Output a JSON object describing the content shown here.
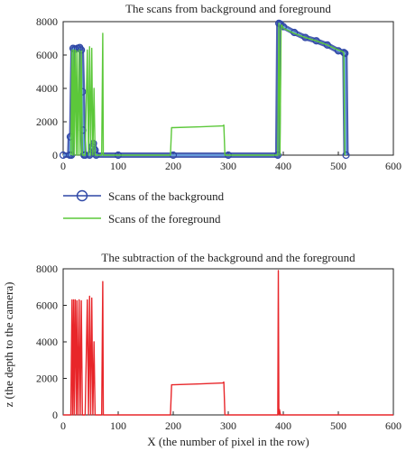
{
  "chart_data": [
    {
      "type": "line",
      "title": "The scans from background and foreground",
      "xlabel": "",
      "ylabel": "",
      "xlim": [
        0,
        600
      ],
      "ylim": [
        0,
        8000
      ],
      "xticks": [
        0,
        100,
        200,
        300,
        400,
        500,
        600
      ],
      "yticks": [
        0,
        2000,
        4000,
        6000,
        8000
      ],
      "grid": false,
      "legend": "below",
      "series": [
        {
          "name": "Scans of the background",
          "color": "#2e47a6",
          "marker": "circle",
          "x": [
            0,
            12,
            13,
            15,
            18,
            22,
            26,
            30,
            33,
            35,
            36,
            38,
            40,
            48,
            52,
            55,
            58,
            60,
            100,
            200,
            300,
            390,
            392,
            395,
            400,
            420,
            440,
            460,
            480,
            500,
            510,
            512,
            514
          ],
          "y": [
            0,
            0,
            1100,
            0,
            6400,
            6350,
            6400,
            6450,
            6300,
            3800,
            1500,
            0,
            0,
            0,
            500,
            700,
            300,
            0,
            0,
            0,
            0,
            0,
            7900,
            7850,
            7700,
            7350,
            7050,
            6850,
            6600,
            6250,
            6150,
            6100,
            0
          ]
        },
        {
          "name": "Scans of the foreground",
          "color": "#5cc83a",
          "x": [
            14,
            16,
            17,
            19,
            20,
            22,
            24,
            25,
            27,
            29,
            31,
            33,
            35,
            37,
            40,
            44,
            46,
            48,
            50,
            52,
            54,
            56,
            58,
            60,
            70,
            72,
            73,
            75,
            195,
            197,
            200,
            250,
            290,
            292,
            294,
            390,
            392,
            394,
            396,
            398,
            400,
            420,
            440,
            460,
            480,
            500,
            508,
            510,
            512
          ],
          "y": [
            0,
            6300,
            0,
            6300,
            0,
            6300,
            0,
            6250,
            0,
            6300,
            0,
            6250,
            0,
            0,
            0,
            6300,
            0,
            6500,
            0,
            6400,
            0,
            4000,
            0,
            0,
            0,
            7300,
            0,
            0,
            0,
            1650,
            1650,
            1700,
            1750,
            1800,
            0,
            0,
            7900,
            0,
            7800,
            7750,
            7600,
            7300,
            7050,
            6850,
            6600,
            6300,
            6200,
            6100,
            0
          ]
        }
      ]
    },
    {
      "type": "line",
      "title": "The subtraction of the background and the foreground",
      "xlabel": "X (the number of pixel in the row)",
      "ylabel": "z (the depth to the camera)",
      "xlim": [
        0,
        600
      ],
      "ylim": [
        0,
        8000
      ],
      "xticks": [
        0,
        100,
        200,
        300,
        400,
        500,
        600
      ],
      "yticks": [
        0,
        2000,
        4000,
        6000,
        8000
      ],
      "grid": false,
      "series": [
        {
          "color": "#e8262a",
          "x": [
            0,
            14,
            16,
            17,
            19,
            20,
            22,
            24,
            25,
            27,
            29,
            31,
            33,
            35,
            37,
            40,
            44,
            46,
            48,
            50,
            52,
            54,
            56,
            58,
            60,
            70,
            72,
            73,
            75,
            195,
            197,
            200,
            250,
            290,
            292,
            294,
            390,
            391,
            392,
            393,
            395,
            400,
            450,
            500,
            600
          ],
          "y": [
            0,
            0,
            6300,
            0,
            6300,
            0,
            6300,
            0,
            6250,
            0,
            6300,
            0,
            6250,
            0,
            0,
            0,
            6300,
            0,
            6500,
            0,
            6400,
            0,
            4000,
            0,
            0,
            0,
            7300,
            0,
            0,
            0,
            1650,
            1650,
            1700,
            1750,
            1800,
            0,
            0,
            7900,
            0,
            300,
            0,
            0,
            0,
            0,
            0
          ]
        }
      ]
    }
  ]
}
